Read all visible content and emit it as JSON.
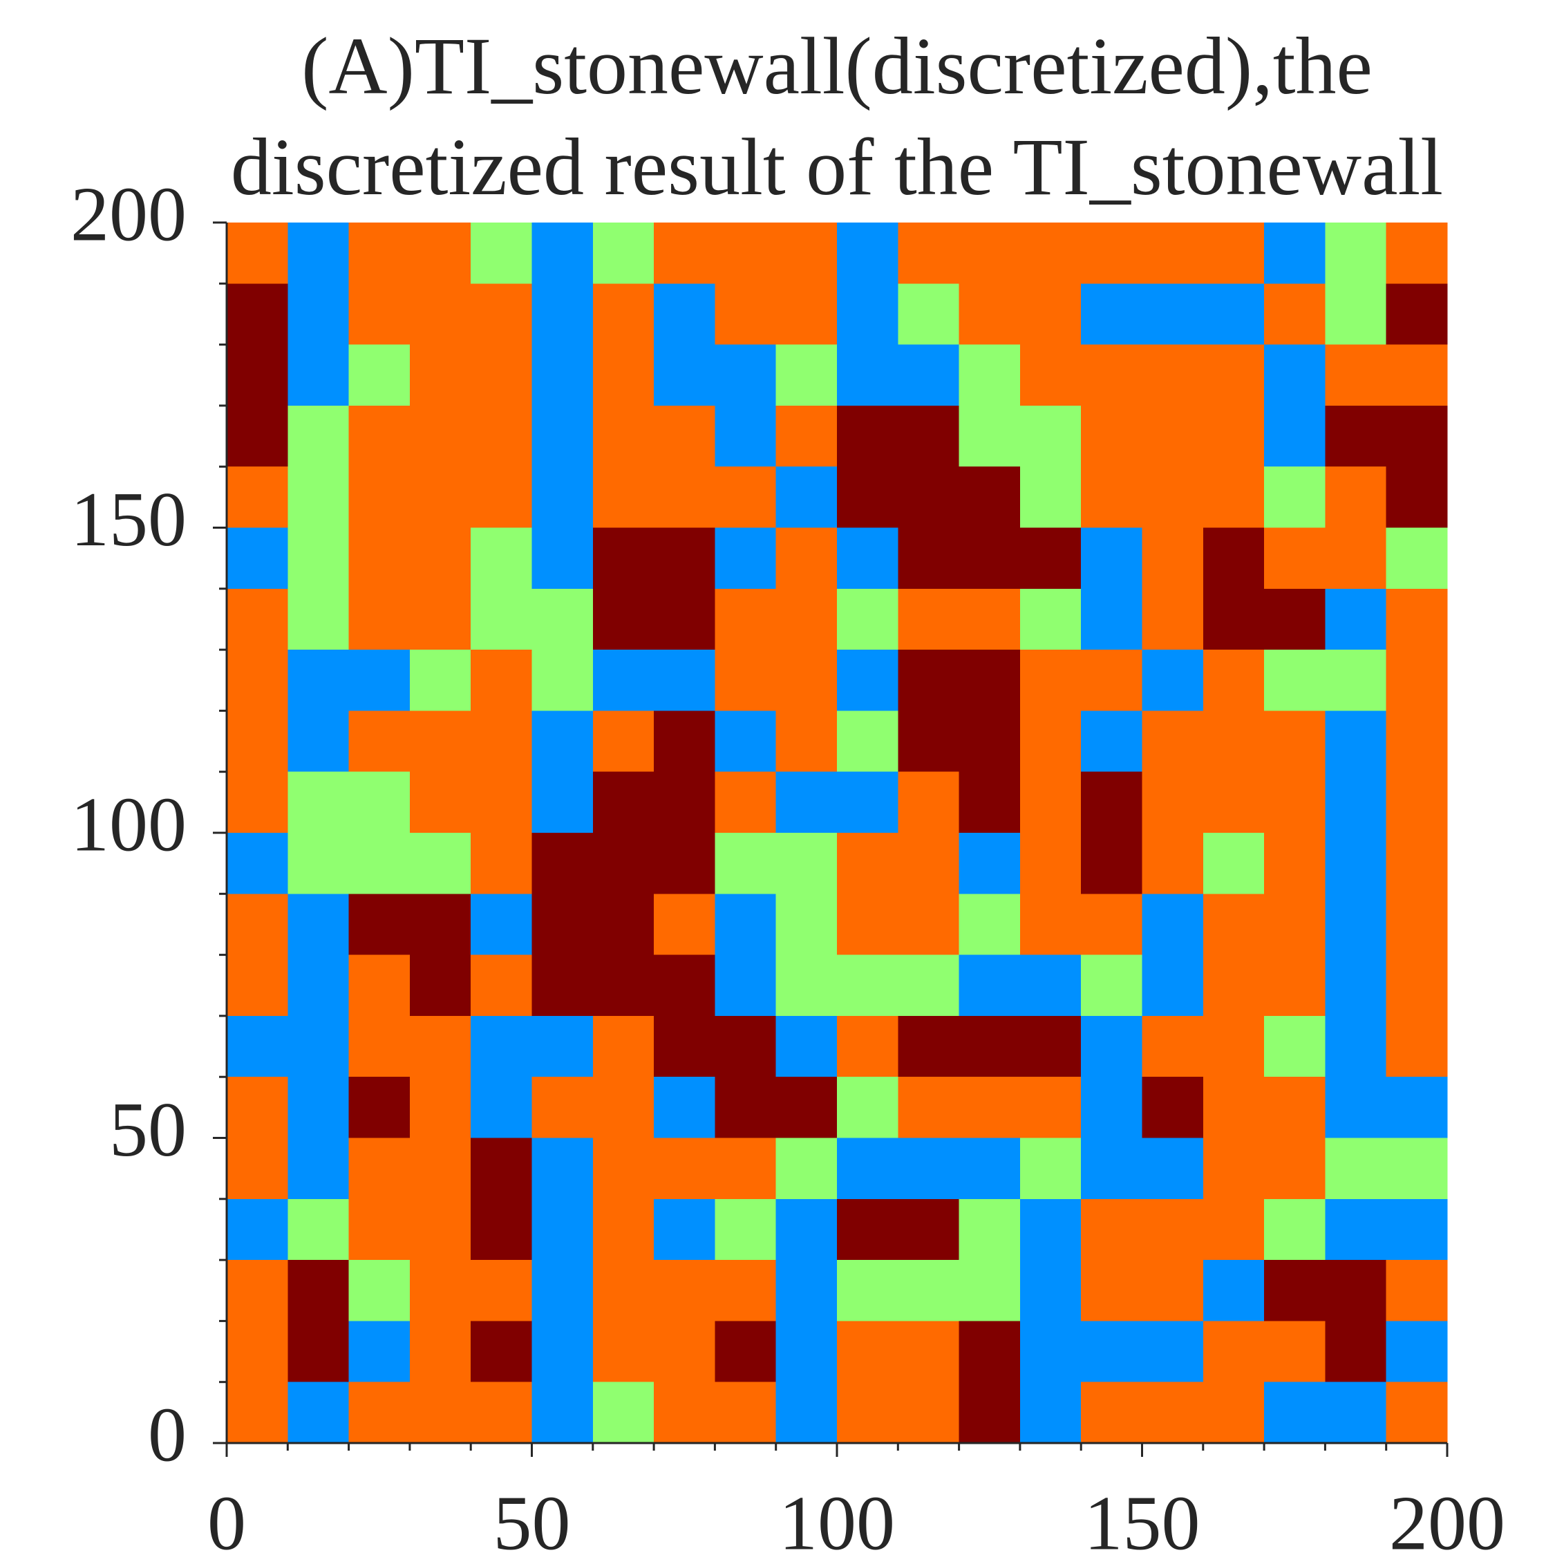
{
  "chart_data": {
    "type": "heatmap",
    "title": [
      "(A)TI_stonewall(discretized),the",
      "discretized result of the TI_stonewall"
    ],
    "xlim": [
      0,
      200
    ],
    "ylim": [
      0,
      200
    ],
    "xticks": [
      0,
      50,
      100,
      150,
      200
    ],
    "yticks": [
      0,
      50,
      100,
      150,
      200
    ],
    "xminorticks": [
      10,
      20,
      30,
      40,
      60,
      70,
      80,
      90,
      110,
      120,
      130,
      140,
      160,
      170,
      180,
      190
    ],
    "yminorticks": [
      10,
      20,
      30,
      40,
      60,
      70,
      80,
      90,
      110,
      120,
      130,
      140,
      160,
      170,
      180,
      190
    ],
    "colors": [
      "#00008f",
      "#0090ff",
      "#90ff70",
      "#ff6a00",
      "#800000"
    ],
    "z": [
      [
        3,
        1,
        3,
        3,
        2,
        1,
        2,
        3,
        3,
        3,
        1,
        3,
        3,
        3,
        3,
        3,
        3,
        1,
        2,
        3
      ],
      [
        4,
        1,
        3,
        3,
        3,
        1,
        3,
        1,
        3,
        3,
        1,
        2,
        3,
        3,
        1,
        1,
        1,
        3,
        2,
        4
      ],
      [
        4,
        1,
        2,
        3,
        3,
        1,
        3,
        1,
        1,
        2,
        1,
        1,
        2,
        3,
        3,
        3,
        3,
        1,
        3,
        3
      ],
      [
        4,
        2,
        3,
        3,
        3,
        1,
        3,
        3,
        1,
        3,
        4,
        4,
        2,
        2,
        3,
        3,
        3,
        1,
        4,
        4
      ],
      [
        3,
        2,
        3,
        3,
        3,
        1,
        3,
        3,
        3,
        1,
        4,
        4,
        4,
        2,
        3,
        3,
        3,
        2,
        3,
        4
      ],
      [
        1,
        2,
        3,
        3,
        2,
        1,
        4,
        4,
        1,
        3,
        1,
        4,
        4,
        4,
        1,
        3,
        4,
        3,
        3,
        2
      ],
      [
        3,
        2,
        3,
        3,
        2,
        2,
        4,
        4,
        3,
        3,
        2,
        3,
        3,
        2,
        1,
        3,
        4,
        4,
        1,
        3
      ],
      [
        3,
        1,
        1,
        2,
        3,
        2,
        1,
        1,
        3,
        3,
        1,
        4,
        4,
        3,
        3,
        1,
        3,
        2,
        2,
        3
      ],
      [
        3,
        1,
        3,
        3,
        3,
        1,
        3,
        4,
        1,
        3,
        2,
        4,
        4,
        3,
        1,
        3,
        3,
        3,
        1,
        3
      ],
      [
        3,
        2,
        2,
        3,
        3,
        1,
        4,
        4,
        3,
        1,
        1,
        3,
        4,
        3,
        4,
        3,
        3,
        3,
        1,
        3
      ],
      [
        1,
        2,
        2,
        2,
        3,
        4,
        4,
        4,
        2,
        2,
        3,
        3,
        1,
        3,
        4,
        3,
        2,
        3,
        1,
        3
      ],
      [
        3,
        1,
        4,
        4,
        1,
        4,
        4,
        3,
        1,
        2,
        3,
        3,
        2,
        3,
        3,
        1,
        3,
        3,
        1,
        3
      ],
      [
        3,
        1,
        3,
        4,
        3,
        4,
        4,
        4,
        1,
        2,
        2,
        2,
        1,
        1,
        2,
        1,
        3,
        3,
        1,
        3
      ],
      [
        1,
        1,
        3,
        3,
        1,
        1,
        3,
        4,
        4,
        1,
        3,
        4,
        4,
        4,
        1,
        3,
        3,
        2,
        1,
        3
      ],
      [
        3,
        1,
        4,
        3,
        1,
        3,
        3,
        1,
        4,
        4,
        2,
        3,
        3,
        3,
        1,
        4,
        3,
        3,
        1,
        1
      ],
      [
        3,
        1,
        3,
        3,
        4,
        1,
        3,
        3,
        3,
        2,
        1,
        1,
        1,
        2,
        1,
        1,
        3,
        3,
        2,
        2
      ],
      [
        1,
        2,
        3,
        3,
        4,
        1,
        3,
        1,
        2,
        1,
        4,
        4,
        2,
        1,
        3,
        3,
        3,
        2,
        1,
        1
      ],
      [
        3,
        4,
        2,
        3,
        3,
        1,
        3,
        3,
        3,
        1,
        2,
        2,
        2,
        1,
        3,
        3,
        1,
        4,
        4,
        3
      ],
      [
        3,
        4,
        1,
        3,
        4,
        1,
        3,
        3,
        4,
        1,
        3,
        3,
        4,
        1,
        1,
        1,
        3,
        3,
        4,
        1
      ],
      [
        3,
        1,
        3,
        3,
        3,
        1,
        2,
        3,
        3,
        1,
        3,
        3,
        4,
        1,
        3,
        3,
        3,
        1,
        1,
        3
      ]
    ]
  }
}
